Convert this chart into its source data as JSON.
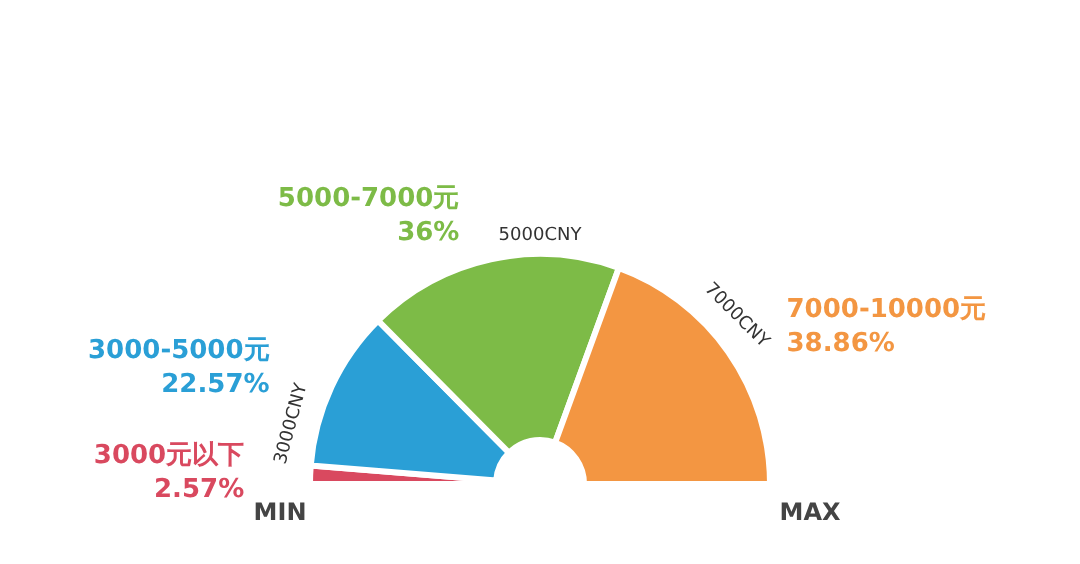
{
  "chart_data": {
    "type": "donut",
    "categories": [
      "3000元以下",
      "3000-5000元",
      "5000-7000元",
      "7000-10000元"
    ],
    "values": [
      2.57,
      22.57,
      36,
      38.86
    ],
    "value_labels": [
      "2.57%",
      "22.57%",
      "36%",
      "38.86%"
    ],
    "colors": [
      "#d9495f",
      "#2a9fd6",
      "#7dbb47",
      "#f39642"
    ],
    "annotations": [
      "3000CNY",
      "5000CNY",
      "7000CNY",
      "MIN",
      "MAX"
    ],
    "legend": false
  }
}
